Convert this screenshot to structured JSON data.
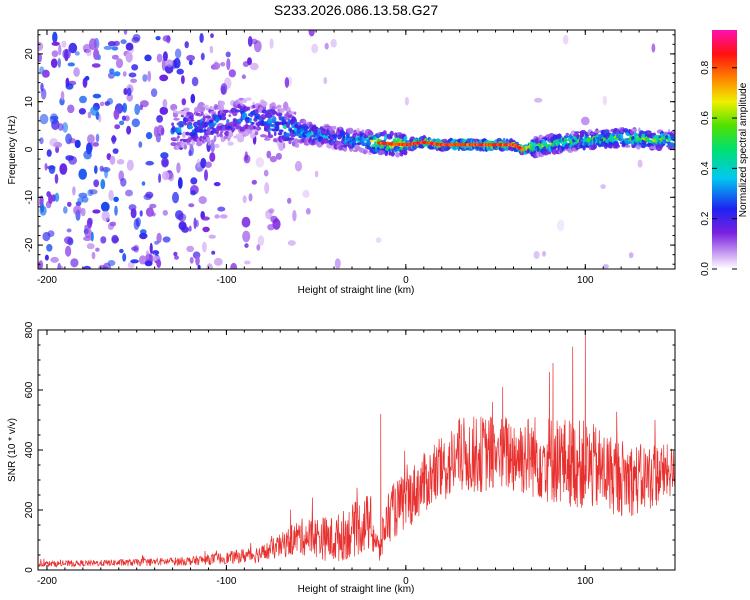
{
  "title": "S233.2026.086.13.58.G27",
  "chart_data": [
    {
      "type": "heatmap",
      "name": "spectrogram",
      "xlabel": "Height of straight line (km)",
      "ylabel": "Frequency (Hz)",
      "xlim": [
        -205,
        150
      ],
      "ylim": [
        -25,
        25
      ],
      "xticks": [
        -200,
        -100,
        0,
        100
      ],
      "xtick_labels": [
        "-200",
        "-100",
        "0",
        "100"
      ],
      "yticks": [
        20,
        10,
        0,
        -10,
        -20
      ],
      "ytick_labels": [
        "20",
        "10",
        "0",
        "-10",
        "-20"
      ],
      "colorbar": {
        "label": "Normalized spectral amplitude",
        "range": [
          0,
          0.95
        ],
        "ticks": [
          0.0,
          0.2,
          0.4,
          0.6,
          0.8
        ],
        "tick_labels": [
          "0.0",
          "0.2",
          "0.4",
          "0.6",
          "0.8"
        ],
        "colormap": "rainbow (white-violet-blue-cyan-green-yellow-red-magenta)"
      },
      "ridge": {
        "description": "dominant frequency track",
        "x": [
          -130,
          -100,
          -90,
          -80,
          -70,
          -60,
          -50,
          -40,
          -30,
          -20,
          -10,
          0,
          10,
          20,
          30,
          40,
          50,
          60,
          65,
          70,
          80,
          90,
          100,
          110,
          120,
          130,
          140,
          150
        ],
        "y": [
          4,
          6,
          7,
          6,
          5,
          4,
          3,
          2.5,
          2,
          1.5,
          1.2,
          1,
          1.5,
          1,
          1,
          1,
          1,
          1,
          0,
          0.5,
          1,
          1.5,
          2,
          2.2,
          2.5,
          2.3,
          2,
          2
        ],
        "peak_amplitude": 0.9
      }
    },
    {
      "type": "line",
      "name": "snr",
      "xlabel": "Height of straight line (km)",
      "ylabel": "SNR (10 * v/v)",
      "xlim": [
        -205,
        150
      ],
      "ylim": [
        0,
        800
      ],
      "xticks": [
        -200,
        -100,
        0,
        100
      ],
      "xtick_labels": [
        "-200",
        "-100",
        "0",
        "100"
      ],
      "yticks": [
        0,
        200,
        400,
        600,
        800
      ],
      "ytick_labels": [
        "0",
        "200",
        "400",
        "600",
        "800"
      ],
      "color": "#e8302e",
      "envelope": {
        "x": [
          -205,
          -180,
          -150,
          -120,
          -100,
          -80,
          -70,
          -60,
          -50,
          -40,
          -30,
          -20,
          -15,
          -10,
          0,
          10,
          20,
          30,
          50,
          70,
          80,
          90,
          100,
          110,
          120,
          130,
          140,
          150
        ],
        "mean": [
          20,
          22,
          25,
          30,
          40,
          55,
          80,
          110,
          110,
          100,
          130,
          160,
          60,
          180,
          230,
          290,
          330,
          380,
          390,
          380,
          370,
          360,
          350,
          330,
          310,
          300,
          320,
          330
        ],
        "spread": [
          10,
          10,
          12,
          15,
          20,
          30,
          40,
          60,
          70,
          80,
          90,
          100,
          50,
          90,
          100,
          100,
          110,
          130,
          130,
          140,
          150,
          150,
          150,
          140,
          130,
          120,
          110,
          80
        ]
      },
      "peaks": [
        {
          "x": -14,
          "y": 520
        },
        {
          "x": 54,
          "y": 610
        },
        {
          "x": 80,
          "y": 660
        },
        {
          "x": 82,
          "y": 690
        },
        {
          "x": 93,
          "y": 745
        },
        {
          "x": 100,
          "y": 800
        }
      ]
    }
  ]
}
